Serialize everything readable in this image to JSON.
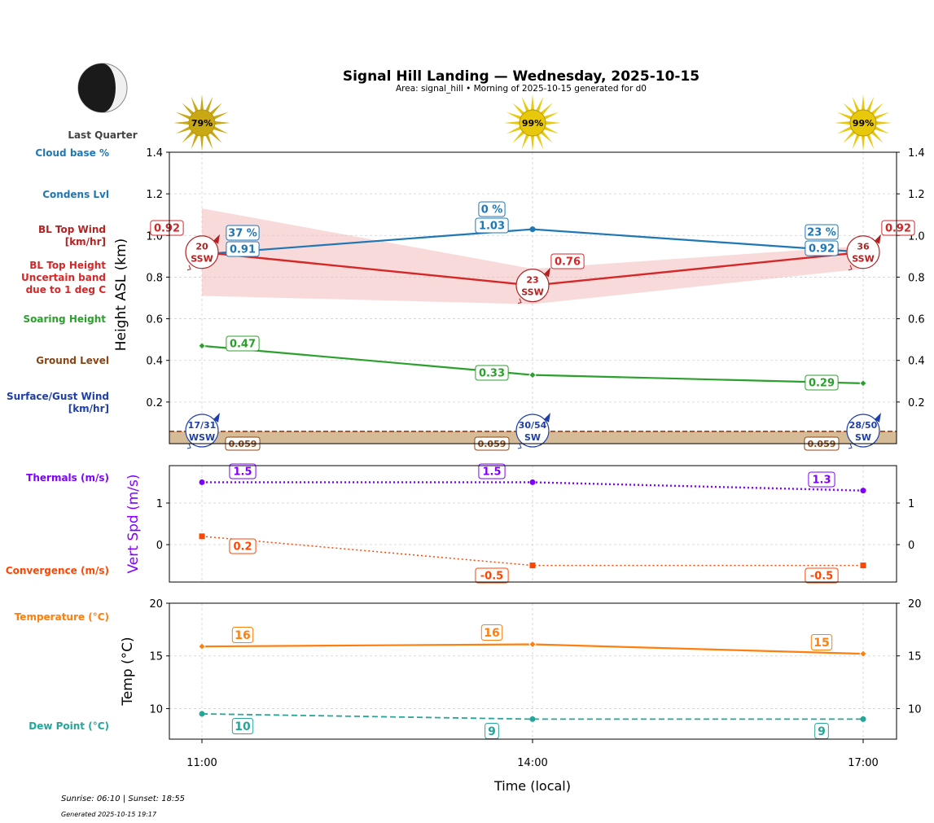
{
  "header": {
    "title": "Signal Hill Landing — Wednesday, 2025-10-15",
    "subtitle": "Area: signal_hill • Morning of 2025-10-15 generated for d0",
    "moon_phase": "Last Quarter"
  },
  "footer": {
    "sun_times": "Sunrise: 06:10 | Sunset: 18:55",
    "generated": "Generated 2025-10-15 19:17"
  },
  "x_axis": {
    "label": "Time (local)",
    "ticks": [
      "11:00",
      "14:00",
      "17:00"
    ]
  },
  "colors": {
    "cloud_base": "#1f77b4",
    "condens": "#1f77b4",
    "bl_top": "#d62728",
    "bl_band": "#f4b6b8",
    "soaring": "#2ca02c",
    "ground": "#8b4513",
    "ground_fill": "#d2b48c",
    "surface_wind": "#1f3fa8",
    "thermals": "#7f00ff",
    "convergence": "#ff4500",
    "temperature": "#ff7f0e",
    "dew_point": "#26a69a",
    "sun_dim": "#c8a814",
    "sun_bright": "#e8c80a"
  },
  "left_labels": {
    "cloud_base": "Cloud base %",
    "condens": "Condens Lvl",
    "bl_top_wind": [
      "BL Top Wind",
      "[km/hr]"
    ],
    "bl_top_height": [
      "BL Top Height",
      "Uncertain band",
      "due to 1 deg C"
    ],
    "soaring": "Soaring Height",
    "ground": "Ground Level",
    "surface_wind": [
      "Surface/Gust Wind",
      "[km/hr]"
    ],
    "thermals": "Thermals (m/s)",
    "convergence": "Convergence (m/s)",
    "temperature": "Temperature (°C)",
    "dew_point": "Dew Point (°C)"
  },
  "chart_data": [
    {
      "type": "line",
      "panel": "height",
      "ylabel": "Height ASL (km)",
      "ylim": [
        0.0,
        1.4
      ],
      "yticks": [
        0.2,
        0.4,
        0.6,
        0.8,
        1.0,
        1.2,
        1.4
      ],
      "grid": true,
      "x": [
        "11:00",
        "14:00",
        "17:00"
      ],
      "sun_percent": [
        "79%",
        "99%",
        "99%"
      ],
      "cloud_base_percent": [
        "37 %",
        "0 %",
        "23 %"
      ],
      "series": [
        {
          "key": "condens",
          "values": [
            0.91,
            1.03,
            0.92
          ],
          "labels": [
            "0.91",
            "1.03",
            "0.92"
          ]
        },
        {
          "key": "bl_top",
          "values": [
            0.92,
            0.76,
            0.92
          ],
          "labels": [
            "0.92",
            "0.76",
            "0.92"
          ],
          "band_low": [
            0.71,
            0.67,
            0.84
          ],
          "band_high": [
            1.13,
            0.84,
            0.95
          ]
        },
        {
          "key": "soaring",
          "values": [
            0.47,
            0.33,
            0.29
          ],
          "labels": [
            "0.47",
            "0.33",
            "0.29"
          ]
        },
        {
          "key": "ground",
          "values": [
            0.059,
            0.059,
            0.059
          ],
          "labels": [
            "0.059",
            "0.059",
            "0.059"
          ]
        }
      ],
      "bl_top_wind": [
        {
          "speed": "20",
          "dir": "SSW"
        },
        {
          "speed": "23",
          "dir": "SSW"
        },
        {
          "speed": "36",
          "dir": "SSW"
        }
      ],
      "surface_wind": [
        {
          "speed": "17/31",
          "dir": "WSW"
        },
        {
          "speed": "30/54",
          "dir": "SW"
        },
        {
          "speed": "28/50",
          "dir": "SW"
        }
      ]
    },
    {
      "type": "line",
      "panel": "vertical",
      "ylabel": "Vert Spd (m/s)",
      "ylim": [
        -0.9,
        1.9
      ],
      "yticks": [
        0,
        1
      ],
      "grid": true,
      "x": [
        "11:00",
        "14:00",
        "17:00"
      ],
      "series": [
        {
          "key": "thermals",
          "values": [
            1.5,
            1.5,
            1.3
          ],
          "labels": [
            "1.5",
            "1.5",
            "1.3"
          ]
        },
        {
          "key": "convergence",
          "values": [
            0.2,
            -0.5,
            -0.5
          ],
          "labels": [
            "0.2",
            "-0.5",
            "-0.5"
          ]
        }
      ]
    },
    {
      "type": "line",
      "panel": "temperature",
      "ylabel": "Temp (°C)",
      "ylim": [
        7.1,
        20.0
      ],
      "yticks": [
        10,
        15,
        20
      ],
      "grid": true,
      "x": [
        "11:00",
        "14:00",
        "17:00"
      ],
      "series": [
        {
          "key": "temperature",
          "values": [
            15.9,
            16.1,
            15.2
          ],
          "labels": [
            "16",
            "16",
            "15"
          ]
        },
        {
          "key": "dew_point",
          "values": [
            9.5,
            9.0,
            9.0
          ],
          "labels": [
            "10",
            "9",
            "9"
          ]
        }
      ]
    }
  ]
}
